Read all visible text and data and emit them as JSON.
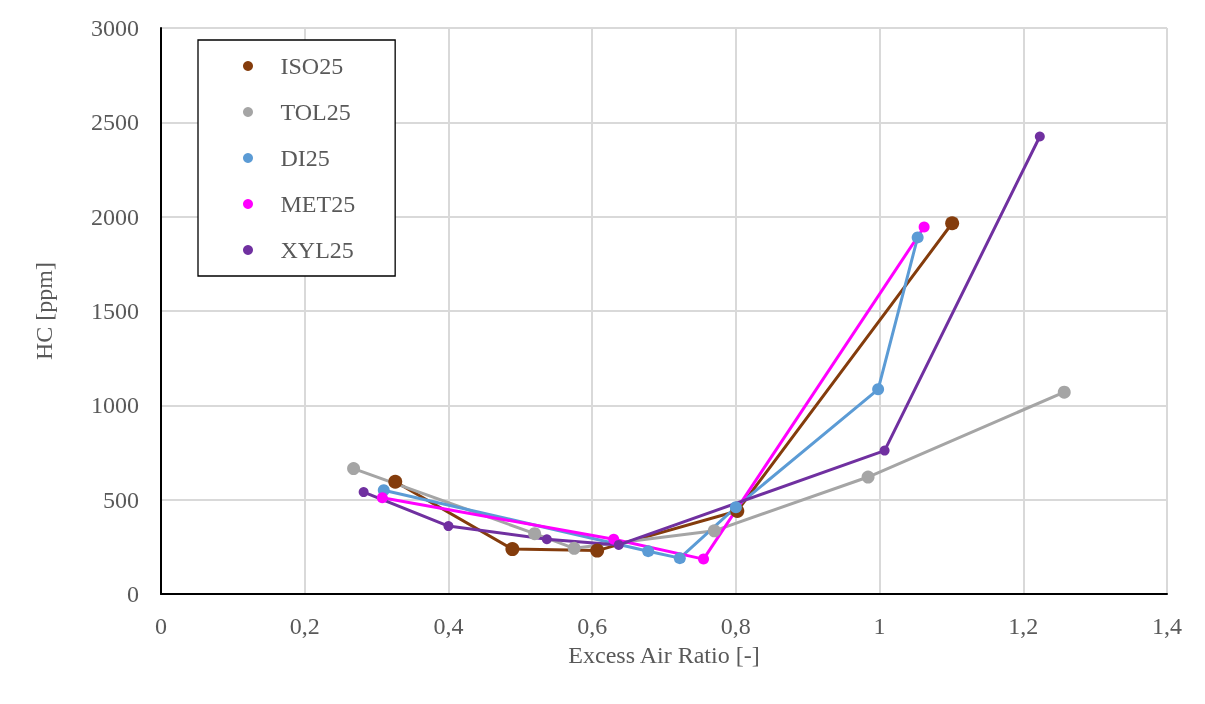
{
  "chart_data": {
    "type": "line",
    "xlabel": "Excess Air Ratio [-]",
    "ylabel": "HC [ppm]",
    "xlim": [
      0,
      1.4
    ],
    "xticks": [
      {
        "value": 0,
        "label": "0"
      },
      {
        "value": 0.2,
        "label": "0,2"
      },
      {
        "value": 0.4,
        "label": "0,4"
      },
      {
        "value": 0.6,
        "label": "0,6"
      },
      {
        "value": 0.8,
        "label": "0,8"
      },
      {
        "value": 1,
        "label": "1"
      },
      {
        "value": 1.2,
        "label": "1,2"
      },
      {
        "value": 1.4,
        "label": "1,4"
      }
    ],
    "ylim": [
      0,
      3000
    ],
    "yticks": [
      0,
      500,
      1000,
      1500,
      2000,
      2500,
      3000
    ],
    "grid": true,
    "legend": "top left",
    "marker": "circle",
    "line_style": "solid",
    "series": [
      {
        "name": "ISO25",
        "color": "#843c0c",
        "x": [
          0.326,
          0.489,
          0.607,
          0.802,
          1.101
        ],
        "values": [
          595,
          238,
          230,
          440,
          1965
        ]
      },
      {
        "name": "TOL25",
        "color": "#a5a5a5",
        "x": [
          0.268,
          0.52,
          0.575,
          0.77,
          0.984,
          1.257
        ],
        "values": [
          665,
          320,
          242,
          335,
          620,
          1070
        ]
      },
      {
        "name": "DI25",
        "color": "#5b9bd5",
        "x": [
          0.31,
          0.678,
          0.722,
          0.8,
          0.998,
          1.053
        ],
        "values": [
          550,
          227,
          190,
          460,
          1085,
          1890
        ]
      },
      {
        "name": "MET25",
        "color": "#ff00ff",
        "x": [
          0.308,
          0.63,
          0.755,
          1.062
        ],
        "values": [
          510,
          290,
          185,
          1945
        ]
      },
      {
        "name": "XYL25",
        "color": "#7030a0",
        "x": [
          0.282,
          0.4,
          0.537,
          0.637,
          1.007,
          1.223
        ],
        "values": [
          540,
          360,
          290,
          260,
          760,
          2425
        ]
      }
    ]
  }
}
